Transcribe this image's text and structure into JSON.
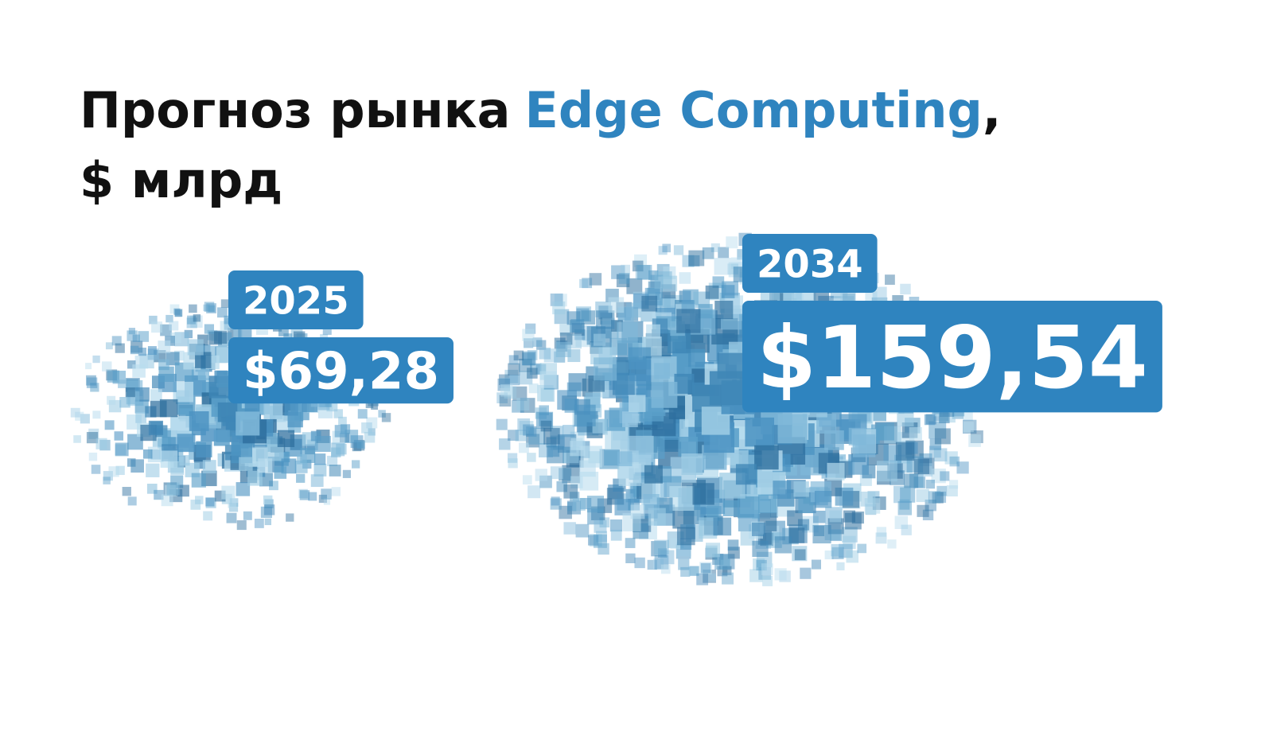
{
  "chart_data": {
    "type": "cloud",
    "title": "Прогноз рынка",
    "title_highlight": "Edge Computing",
    "title_end": ",",
    "subtitle": "$ млрд",
    "categories": [
      "2025",
      "2034"
    ],
    "values": [
      69.28,
      159.54
    ],
    "value_labels": [
      "$69,28",
      "$159,54"
    ],
    "color": "#2f84bf"
  }
}
